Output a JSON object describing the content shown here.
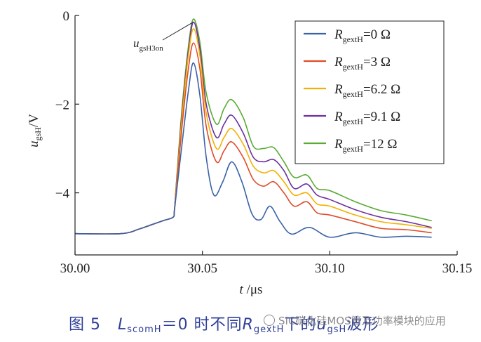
{
  "chart_data": {
    "type": "line",
    "xlabel": "t /μs",
    "xlabel_parts": {
      "var": "t",
      "unit": " /μs"
    },
    "ylabel_parts": {
      "var": "u",
      "sub": "gsH",
      "unit": "/V"
    },
    "xlim": [
      30.0,
      30.15
    ],
    "ylim": [
      -5.4,
      0
    ],
    "xticks": [
      "30.00",
      "30.05",
      "30.10",
      "30.15"
    ],
    "xtick_values": [
      30.0,
      30.05,
      30.1,
      30.15
    ],
    "yticks": [
      "0",
      "−2",
      "−4"
    ],
    "ytick_values": [
      0,
      -2,
      -4
    ],
    "legend_position": "top-right",
    "legend_var": "R",
    "legend_sub": "gextH",
    "annotation": {
      "var": "u",
      "sub": "gsH3on",
      "points_to": [
        30.0465,
        -0.1
      ]
    },
    "series": [
      {
        "name": "RgextH=0 Ω",
        "value_label": "=0 Ω",
        "color": "#3a62a8",
        "x": [
          30.0,
          30.018,
          30.025,
          30.03,
          30.035,
          30.0385,
          30.039,
          30.04,
          30.042,
          30.0445,
          30.0465,
          30.049,
          30.0515,
          30.0545,
          30.058,
          30.0615,
          30.0655,
          30.0695,
          30.073,
          30.0765,
          30.0805,
          30.085,
          30.092,
          30.1,
          30.11,
          30.12,
          30.13,
          30.14
        ],
        "y": [
          -4.92,
          -4.92,
          -4.82,
          -4.72,
          -4.62,
          -4.55,
          -4.4,
          -3.9,
          -2.9,
          -1.7,
          -1.07,
          -1.8,
          -3.2,
          -4.05,
          -3.75,
          -3.3,
          -3.75,
          -4.48,
          -4.6,
          -4.3,
          -4.65,
          -4.93,
          -4.78,
          -5.0,
          -4.9,
          -5.0,
          -4.98,
          -5.0
        ]
      },
      {
        "name": "RgextH=3 Ω",
        "value_label": "=3 Ω",
        "color": "#e04b2a",
        "x": [
          30.0,
          30.018,
          30.025,
          30.03,
          30.035,
          30.0385,
          30.039,
          30.04,
          30.042,
          30.0445,
          30.0465,
          30.049,
          30.0515,
          30.0555,
          30.0585,
          30.0615,
          30.066,
          30.07,
          30.074,
          30.078,
          30.082,
          30.086,
          30.091,
          30.095,
          30.1,
          30.11,
          30.12,
          30.13,
          30.14
        ],
        "y": [
          -4.92,
          -4.92,
          -4.82,
          -4.72,
          -4.62,
          -4.55,
          -4.4,
          -3.8,
          -2.5,
          -1.2,
          -0.62,
          -1.2,
          -2.5,
          -3.3,
          -3.05,
          -2.85,
          -3.2,
          -3.7,
          -3.85,
          -3.75,
          -4.0,
          -4.3,
          -4.2,
          -4.45,
          -4.5,
          -4.65,
          -4.8,
          -4.83,
          -4.9
        ]
      },
      {
        "name": "RgextH=6.2 Ω",
        "value_label": "=6.2 Ω",
        "color": "#f2b000",
        "x": [
          30.0,
          30.018,
          30.025,
          30.03,
          30.035,
          30.0385,
          30.039,
          30.04,
          30.042,
          30.0445,
          30.0465,
          30.049,
          30.0515,
          30.0555,
          30.0585,
          30.0615,
          30.066,
          30.07,
          30.074,
          30.078,
          30.082,
          30.086,
          30.091,
          30.095,
          30.1,
          30.11,
          30.12,
          30.13,
          30.14
        ],
        "y": [
          -4.92,
          -4.92,
          -4.82,
          -4.72,
          -4.62,
          -4.55,
          -4.4,
          -3.7,
          -2.3,
          -0.9,
          -0.3,
          -0.9,
          -2.2,
          -3.0,
          -2.75,
          -2.55,
          -2.9,
          -3.4,
          -3.55,
          -3.5,
          -3.75,
          -4.05,
          -4.0,
          -4.25,
          -4.3,
          -4.5,
          -4.65,
          -4.72,
          -4.8
        ]
      },
      {
        "name": "RgextH=9.1 Ω",
        "value_label": "=9.1 Ω",
        "color": "#6b2fa0",
        "x": [
          30.0,
          30.018,
          30.025,
          30.03,
          30.035,
          30.0385,
          30.039,
          30.04,
          30.042,
          30.0445,
          30.0465,
          30.049,
          30.0515,
          30.0555,
          30.0585,
          30.0615,
          30.066,
          30.07,
          30.074,
          30.078,
          30.082,
          30.086,
          30.091,
          30.095,
          30.1,
          30.11,
          30.12,
          30.13,
          30.14
        ],
        "y": [
          -4.92,
          -4.92,
          -4.82,
          -4.72,
          -4.62,
          -4.55,
          -4.4,
          -3.65,
          -2.2,
          -0.8,
          -0.15,
          -0.75,
          -2.0,
          -2.75,
          -2.45,
          -2.25,
          -2.65,
          -3.2,
          -3.3,
          -3.25,
          -3.5,
          -3.9,
          -3.8,
          -4.05,
          -4.15,
          -4.38,
          -4.55,
          -4.65,
          -4.78
        ]
      },
      {
        "name": "RgextH=12 Ω",
        "value_label": "=12 Ω",
        "color": "#5aaa35",
        "x": [
          30.0,
          30.018,
          30.025,
          30.03,
          30.035,
          30.0385,
          30.039,
          30.04,
          30.042,
          30.0445,
          30.0465,
          30.049,
          30.0515,
          30.0555,
          30.0585,
          30.0615,
          30.066,
          30.07,
          30.074,
          30.078,
          30.082,
          30.086,
          30.091,
          30.095,
          30.1,
          30.11,
          30.12,
          30.13,
          30.14
        ],
        "y": [
          -4.92,
          -4.92,
          -4.82,
          -4.72,
          -4.62,
          -4.55,
          -4.4,
          -3.6,
          -2.1,
          -0.7,
          -0.08,
          -0.6,
          -1.75,
          -2.45,
          -2.1,
          -1.9,
          -2.3,
          -2.95,
          -3.0,
          -2.98,
          -3.3,
          -3.65,
          -3.6,
          -3.9,
          -3.95,
          -4.2,
          -4.4,
          -4.5,
          -4.63
        ]
      }
    ]
  },
  "caption": {
    "fig": "图 5",
    "l_var": "L",
    "l_sub": "scomH",
    "text1": "＝0 时不同",
    "r_var": "R",
    "r_sub": "gextH",
    "text2": "下的",
    "u_var": "u",
    "u_sub": "gsH",
    "text3": "波形"
  },
  "watermark": "SIC碳化硅MOS管及功率模块的应用"
}
